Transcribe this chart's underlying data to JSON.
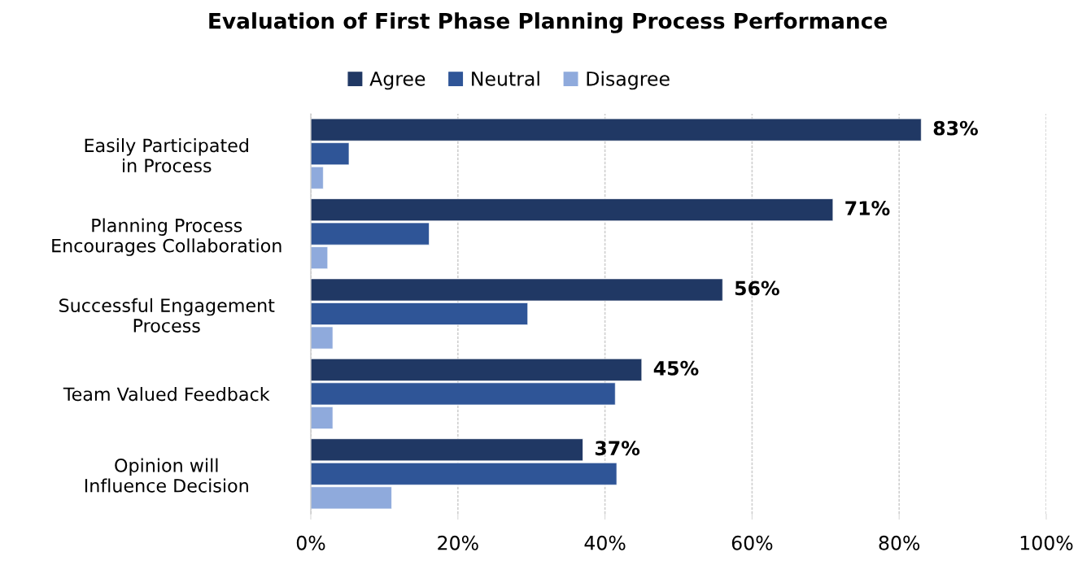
{
  "chart_data": {
    "type": "bar",
    "orientation": "horizontal",
    "title": "Evaluation of First Phase Planning Process Performance",
    "categories": [
      "Easily Participated\nin Process",
      "Planning Process\nEncourages Collaboration",
      "Successful Engagement\nProcess",
      "Team Valued Feedback",
      "Opinion will\nInfluence Decision"
    ],
    "series": [
      {
        "name": "Agree",
        "color": "#203864",
        "values": [
          83,
          71,
          56,
          45,
          37
        ],
        "value_labels": [
          "83%",
          "71%",
          "56%",
          "45%",
          "37%"
        ]
      },
      {
        "name": "Neutral",
        "color": "#2f5597",
        "values": [
          5.2,
          16.1,
          29.5,
          41.4,
          41.6
        ]
      },
      {
        "name": "Disagree",
        "color": "#8faadc",
        "values": [
          1.7,
          2.3,
          3.0,
          3.0,
          11.0
        ]
      }
    ],
    "xlim": [
      0,
      100
    ],
    "xticks": [
      {
        "value": 0,
        "label": "0%"
      },
      {
        "value": 20,
        "label": "20%"
      },
      {
        "value": 40,
        "label": "40%"
      },
      {
        "value": 60,
        "label": "60%"
      },
      {
        "value": 80,
        "label": "80%"
      },
      {
        "value": 100,
        "label": "100%"
      }
    ],
    "grid": "x",
    "legend": "top"
  }
}
